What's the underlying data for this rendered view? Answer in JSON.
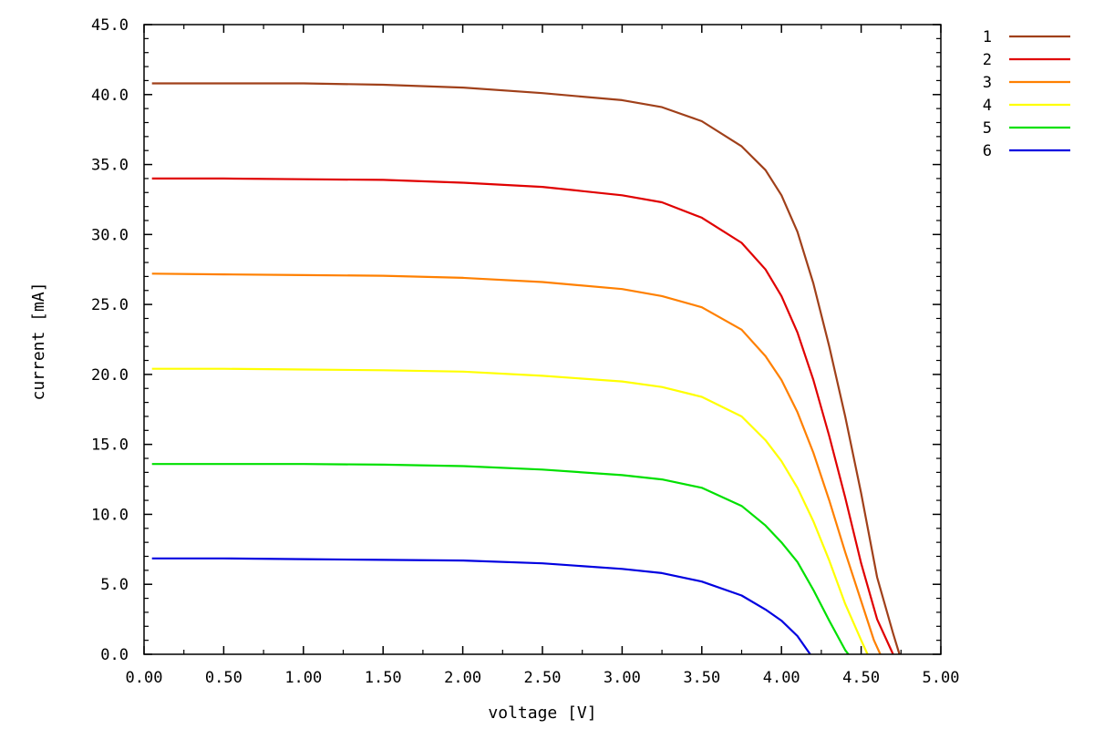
{
  "chart_data": {
    "type": "line",
    "title": "",
    "xlabel": "voltage [V]",
    "ylabel": "current [mA]",
    "xlim": [
      0,
      5
    ],
    "ylim": [
      0,
      45
    ],
    "x_ticks": [
      "0.00",
      "0.50",
      "1.00",
      "1.50",
      "2.00",
      "2.50",
      "3.00",
      "3.50",
      "4.00",
      "4.50",
      "5.00"
    ],
    "y_ticks": [
      "0.0",
      "5.0",
      "10.0",
      "15.0",
      "20.0",
      "25.0",
      "30.0",
      "35.0",
      "40.0",
      "45.0"
    ],
    "grid": false,
    "legend_position": "top-right, outside plot",
    "series": [
      {
        "name": "1",
        "color": "#a0401a",
        "points": [
          [
            0.05,
            40.8
          ],
          [
            0.5,
            40.8
          ],
          [
            1.0,
            40.8
          ],
          [
            1.5,
            40.7
          ],
          [
            2.0,
            40.5
          ],
          [
            2.5,
            40.1
          ],
          [
            3.0,
            39.6
          ],
          [
            3.25,
            39.1
          ],
          [
            3.5,
            38.1
          ],
          [
            3.75,
            36.3
          ],
          [
            3.9,
            34.6
          ],
          [
            4.0,
            32.8
          ],
          [
            4.1,
            30.2
          ],
          [
            4.2,
            26.5
          ],
          [
            4.3,
            22.0
          ],
          [
            4.4,
            17.0
          ],
          [
            4.5,
            11.5
          ],
          [
            4.6,
            5.5
          ],
          [
            4.7,
            1.5
          ],
          [
            4.74,
            0.0
          ]
        ]
      },
      {
        "name": "2",
        "color": "#e00000",
        "points": [
          [
            0.05,
            34.0
          ],
          [
            0.5,
            34.0
          ],
          [
            1.0,
            33.95
          ],
          [
            1.5,
            33.9
          ],
          [
            2.0,
            33.7
          ],
          [
            2.5,
            33.4
          ],
          [
            3.0,
            32.8
          ],
          [
            3.25,
            32.3
          ],
          [
            3.5,
            31.2
          ],
          [
            3.75,
            29.4
          ],
          [
            3.9,
            27.5
          ],
          [
            4.0,
            25.6
          ],
          [
            4.1,
            23.0
          ],
          [
            4.2,
            19.6
          ],
          [
            4.3,
            15.6
          ],
          [
            4.4,
            11.2
          ],
          [
            4.5,
            6.5
          ],
          [
            4.6,
            2.5
          ],
          [
            4.7,
            0.0
          ]
        ]
      },
      {
        "name": "3",
        "color": "#ff8000",
        "points": [
          [
            0.05,
            27.2
          ],
          [
            0.5,
            27.15
          ],
          [
            1.0,
            27.1
          ],
          [
            1.5,
            27.05
          ],
          [
            2.0,
            26.9
          ],
          [
            2.5,
            26.6
          ],
          [
            3.0,
            26.1
          ],
          [
            3.25,
            25.6
          ],
          [
            3.5,
            24.8
          ],
          [
            3.75,
            23.2
          ],
          [
            3.9,
            21.3
          ],
          [
            4.0,
            19.6
          ],
          [
            4.1,
            17.3
          ],
          [
            4.2,
            14.4
          ],
          [
            4.3,
            11.0
          ],
          [
            4.4,
            7.3
          ],
          [
            4.5,
            3.8
          ],
          [
            4.58,
            1.0
          ],
          [
            4.62,
            0.0
          ]
        ]
      },
      {
        "name": "4",
        "color": "#ffff00",
        "points": [
          [
            0.05,
            20.4
          ],
          [
            0.5,
            20.4
          ],
          [
            1.0,
            20.35
          ],
          [
            1.5,
            20.3
          ],
          [
            2.0,
            20.2
          ],
          [
            2.5,
            19.9
          ],
          [
            3.0,
            19.5
          ],
          [
            3.25,
            19.1
          ],
          [
            3.5,
            18.4
          ],
          [
            3.75,
            17.0
          ],
          [
            3.9,
            15.3
          ],
          [
            4.0,
            13.8
          ],
          [
            4.1,
            11.9
          ],
          [
            4.2,
            9.5
          ],
          [
            4.3,
            6.7
          ],
          [
            4.4,
            3.6
          ],
          [
            4.5,
            1.0
          ],
          [
            4.54,
            0.0
          ]
        ]
      },
      {
        "name": "5",
        "color": "#00e000",
        "points": [
          [
            0.05,
            13.6
          ],
          [
            0.5,
            13.6
          ],
          [
            1.0,
            13.6
          ],
          [
            1.5,
            13.55
          ],
          [
            2.0,
            13.45
          ],
          [
            2.5,
            13.2
          ],
          [
            3.0,
            12.8
          ],
          [
            3.25,
            12.5
          ],
          [
            3.5,
            11.9
          ],
          [
            3.75,
            10.6
          ],
          [
            3.9,
            9.2
          ],
          [
            4.0,
            8.0
          ],
          [
            4.1,
            6.6
          ],
          [
            4.2,
            4.6
          ],
          [
            4.3,
            2.4
          ],
          [
            4.4,
            0.3
          ],
          [
            4.42,
            0.0
          ]
        ]
      },
      {
        "name": "6",
        "color": "#0000e0",
        "points": [
          [
            0.05,
            6.85
          ],
          [
            0.5,
            6.85
          ],
          [
            1.0,
            6.8
          ],
          [
            1.5,
            6.75
          ],
          [
            2.0,
            6.7
          ],
          [
            2.5,
            6.5
          ],
          [
            3.0,
            6.1
          ],
          [
            3.25,
            5.8
          ],
          [
            3.5,
            5.2
          ],
          [
            3.75,
            4.2
          ],
          [
            3.9,
            3.2
          ],
          [
            4.0,
            2.4
          ],
          [
            4.1,
            1.3
          ],
          [
            4.18,
            0.0
          ]
        ]
      }
    ]
  }
}
